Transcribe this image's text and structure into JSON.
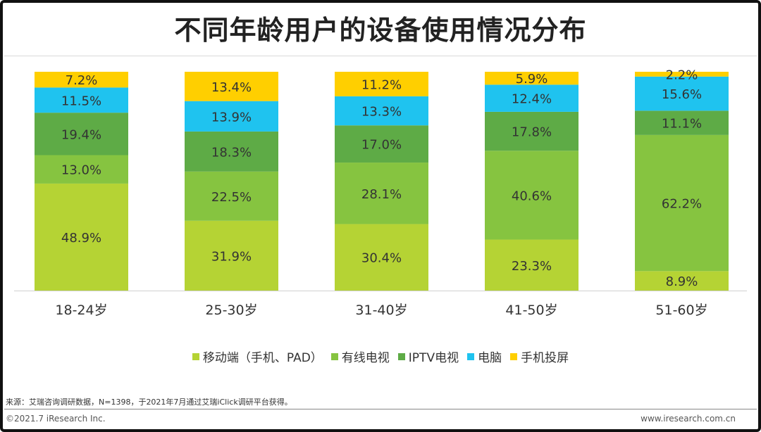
{
  "title": "不同年龄用户的设备使用情况分布",
  "chart_data": {
    "type": "bar",
    "stacked": true,
    "normalized": true,
    "categories": [
      "18-24岁",
      "25-30岁",
      "31-40岁",
      "41-50岁",
      "51-60岁"
    ],
    "series": [
      {
        "name": "移动端（手机、PAD）",
        "color": "#b5d334",
        "values": [
          48.9,
          31.9,
          30.4,
          23.3,
          8.9
        ]
      },
      {
        "name": "有线电视",
        "color": "#86c440",
        "values": [
          13.0,
          22.5,
          28.1,
          40.6,
          62.2
        ]
      },
      {
        "name": "IPTV电视",
        "color": "#5eab46",
        "values": [
          19.4,
          18.3,
          17.0,
          17.8,
          11.1
        ]
      },
      {
        "name": "电脑",
        "color": "#1fc3ef",
        "values": [
          11.5,
          13.9,
          13.3,
          12.4,
          15.6
        ]
      },
      {
        "name": "手机投屏",
        "color": "#ffcf00",
        "values": [
          7.2,
          13.4,
          11.2,
          5.9,
          2.2
        ]
      }
    ],
    "value_suffix": "%",
    "ylim": [
      0,
      100
    ],
    "legend_position": "bottom"
  },
  "source": "来源：艾瑞咨询调研数据，N=1398，于2021年7月通过艾瑞iClick调研平台获得。",
  "footer_left": "©2021.7 iResearch Inc.",
  "footer_right": "www.iresearch.com.cn"
}
